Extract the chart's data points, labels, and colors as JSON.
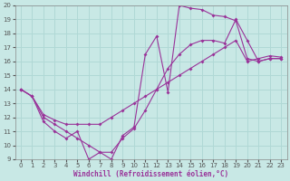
{
  "title": "",
  "xlabel": "Windchill (Refroidissement éolien,°C)",
  "ylabel": "",
  "xlim": [
    -0.5,
    23.5
  ],
  "ylim": [
    9,
    20
  ],
  "yticks": [
    9,
    10,
    11,
    12,
    13,
    14,
    15,
    16,
    17,
    18,
    19,
    20
  ],
  "xticks": [
    0,
    1,
    2,
    3,
    4,
    5,
    6,
    7,
    8,
    9,
    10,
    11,
    12,
    13,
    14,
    15,
    16,
    17,
    18,
    19,
    20,
    21,
    22,
    23
  ],
  "line_color": "#993399",
  "bg_color": "#c8e8e5",
  "grid_color": "#b0d8d5",
  "line1_x": [
    0,
    1,
    2,
    3,
    4,
    5,
    6,
    7,
    8,
    9,
    10,
    11,
    12,
    13,
    14,
    15,
    16,
    17,
    18,
    19,
    20,
    21,
    22,
    23
  ],
  "line1_y": [
    14.0,
    13.5,
    11.7,
    11.0,
    10.5,
    11.0,
    9.0,
    9.5,
    9.0,
    10.7,
    11.3,
    16.5,
    17.8,
    13.8,
    20.0,
    19.8,
    19.7,
    19.3,
    19.2,
    18.9,
    16.2,
    16.0,
    16.2,
    16.2
  ],
  "line2_x": [
    0,
    1,
    2,
    3,
    4,
    5,
    6,
    7,
    8,
    9,
    10,
    11,
    12,
    13,
    14,
    15,
    16,
    17,
    18,
    19,
    20,
    21,
    22,
    23
  ],
  "line2_y": [
    14.0,
    13.5,
    12.2,
    11.8,
    11.5,
    11.5,
    11.5,
    11.5,
    12.0,
    12.5,
    13.0,
    13.5,
    14.0,
    14.5,
    15.0,
    15.5,
    16.0,
    16.5,
    17.0,
    17.5,
    16.0,
    16.2,
    16.4,
    16.3
  ],
  "line3_x": [
    0,
    1,
    2,
    3,
    4,
    5,
    6,
    7,
    8,
    9,
    10,
    11,
    12,
    13,
    14,
    15,
    16,
    17,
    18,
    19,
    20,
    21,
    22,
    23
  ],
  "line3_y": [
    14.0,
    13.5,
    12.0,
    11.5,
    11.0,
    10.5,
    10.0,
    9.5,
    9.5,
    10.5,
    11.2,
    12.5,
    14.0,
    15.5,
    16.5,
    17.2,
    17.5,
    17.5,
    17.3,
    19.0,
    17.5,
    16.0,
    16.2,
    16.2
  ]
}
